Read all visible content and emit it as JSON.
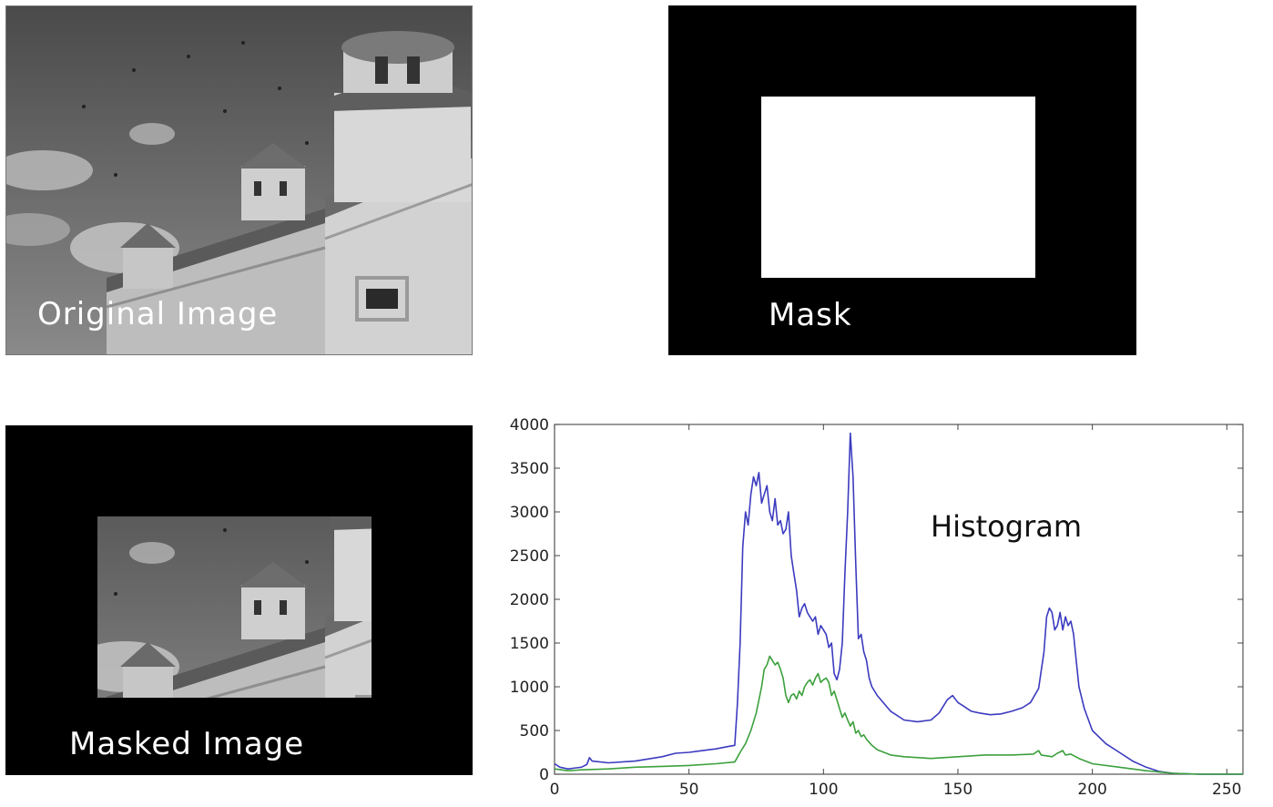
{
  "panels": {
    "original": {
      "caption": "Original Image"
    },
    "mask": {
      "caption": "Mask"
    },
    "masked": {
      "caption": "Masked Image"
    }
  },
  "chart_data": {
    "type": "line",
    "title": "Histogram",
    "xlabel": "",
    "ylabel": "",
    "xlim": [
      0,
      256
    ],
    "ylim": [
      0,
      4000
    ],
    "xticks": [
      0,
      50,
      100,
      150,
      200,
      250
    ],
    "yticks": [
      0,
      500,
      1000,
      1500,
      2000,
      2500,
      3000,
      3500,
      4000
    ],
    "grid": false,
    "legend": "none",
    "series": [
      {
        "color": "#3b3bbf",
        "points": [
          [
            0,
            120
          ],
          [
            2,
            80
          ],
          [
            5,
            60
          ],
          [
            10,
            80
          ],
          [
            12,
            110
          ],
          [
            13,
            190
          ],
          [
            14,
            150
          ],
          [
            20,
            130
          ],
          [
            30,
            150
          ],
          [
            40,
            200
          ],
          [
            45,
            240
          ],
          [
            50,
            250
          ],
          [
            55,
            270
          ],
          [
            60,
            290
          ],
          [
            65,
            320
          ],
          [
            67,
            330
          ],
          [
            68,
            800
          ],
          [
            69,
            1500
          ],
          [
            70,
            2600
          ],
          [
            71,
            3000
          ],
          [
            72,
            2850
          ],
          [
            73,
            3200
          ],
          [
            74,
            3400
          ],
          [
            75,
            3300
          ],
          [
            76,
            3450
          ],
          [
            77,
            3100
          ],
          [
            78,
            3200
          ],
          [
            79,
            3300
          ],
          [
            80,
            3000
          ],
          [
            81,
            2900
          ],
          [
            82,
            3150
          ],
          [
            83,
            2850
          ],
          [
            84,
            2900
          ],
          [
            85,
            2750
          ],
          [
            86,
            2800
          ],
          [
            87,
            3000
          ],
          [
            88,
            2500
          ],
          [
            89,
            2300
          ],
          [
            90,
            2100
          ],
          [
            91,
            1800
          ],
          [
            92,
            1900
          ],
          [
            93,
            1950
          ],
          [
            94,
            1850
          ],
          [
            95,
            1800
          ],
          [
            96,
            1750
          ],
          [
            97,
            1800
          ],
          [
            98,
            1600
          ],
          [
            99,
            1700
          ],
          [
            100,
            1650
          ],
          [
            101,
            1600
          ],
          [
            102,
            1450
          ],
          [
            103,
            1500
          ],
          [
            104,
            1150
          ],
          [
            105,
            1080
          ],
          [
            106,
            1200
          ],
          [
            107,
            1500
          ],
          [
            108,
            2300
          ],
          [
            109,
            3000
          ],
          [
            110,
            3900
          ],
          [
            111,
            3400
          ],
          [
            112,
            2400
          ],
          [
            113,
            1550
          ],
          [
            114,
            1600
          ],
          [
            115,
            1400
          ],
          [
            116,
            1300
          ],
          [
            117,
            1100
          ],
          [
            118,
            1000
          ],
          [
            120,
            900
          ],
          [
            125,
            720
          ],
          [
            130,
            620
          ],
          [
            135,
            600
          ],
          [
            140,
            620
          ],
          [
            143,
            700
          ],
          [
            146,
            850
          ],
          [
            148,
            900
          ],
          [
            150,
            820
          ],
          [
            152,
            780
          ],
          [
            155,
            720
          ],
          [
            158,
            700
          ],
          [
            162,
            680
          ],
          [
            166,
            690
          ],
          [
            170,
            720
          ],
          [
            174,
            760
          ],
          [
            177,
            820
          ],
          [
            180,
            980
          ],
          [
            182,
            1400
          ],
          [
            183,
            1800
          ],
          [
            184,
            1900
          ],
          [
            185,
            1850
          ],
          [
            186,
            1650
          ],
          [
            187,
            1700
          ],
          [
            188,
            1850
          ],
          [
            189,
            1650
          ],
          [
            190,
            1800
          ],
          [
            191,
            1700
          ],
          [
            192,
            1750
          ],
          [
            193,
            1600
          ],
          [
            194,
            1300
          ],
          [
            195,
            1000
          ],
          [
            197,
            750
          ],
          [
            200,
            500
          ],
          [
            205,
            350
          ],
          [
            210,
            250
          ],
          [
            215,
            150
          ],
          [
            220,
            80
          ],
          [
            225,
            30
          ],
          [
            230,
            10
          ],
          [
            240,
            0
          ],
          [
            256,
            0
          ]
        ]
      },
      {
        "color": "#3ca03c",
        "points": [
          [
            0,
            60
          ],
          [
            5,
            40
          ],
          [
            10,
            50
          ],
          [
            20,
            60
          ],
          [
            30,
            80
          ],
          [
            40,
            90
          ],
          [
            50,
            100
          ],
          [
            60,
            120
          ],
          [
            67,
            140
          ],
          [
            69,
            250
          ],
          [
            71,
            350
          ],
          [
            73,
            500
          ],
          [
            75,
            700
          ],
          [
            77,
            1000
          ],
          [
            78,
            1200
          ],
          [
            79,
            1250
          ],
          [
            80,
            1350
          ],
          [
            81,
            1300
          ],
          [
            82,
            1250
          ],
          [
            83,
            1280
          ],
          [
            84,
            1200
          ],
          [
            85,
            1100
          ],
          [
            86,
            900
          ],
          [
            87,
            820
          ],
          [
            88,
            900
          ],
          [
            89,
            920
          ],
          [
            90,
            860
          ],
          [
            91,
            950
          ],
          [
            92,
            900
          ],
          [
            93,
            1000
          ],
          [
            94,
            1050
          ],
          [
            95,
            1080
          ],
          [
            96,
            1020
          ],
          [
            97,
            1100
          ],
          [
            98,
            1150
          ],
          [
            99,
            1050
          ],
          [
            100,
            1080
          ],
          [
            101,
            1100
          ],
          [
            102,
            1050
          ],
          [
            103,
            900
          ],
          [
            104,
            950
          ],
          [
            105,
            850
          ],
          [
            106,
            750
          ],
          [
            107,
            650
          ],
          [
            108,
            700
          ],
          [
            109,
            620
          ],
          [
            110,
            550
          ],
          [
            111,
            600
          ],
          [
            112,
            470
          ],
          [
            113,
            500
          ],
          [
            114,
            430
          ],
          [
            115,
            450
          ],
          [
            116,
            400
          ],
          [
            118,
            330
          ],
          [
            120,
            280
          ],
          [
            125,
            220
          ],
          [
            130,
            200
          ],
          [
            140,
            180
          ],
          [
            150,
            200
          ],
          [
            160,
            220
          ],
          [
            170,
            220
          ],
          [
            178,
            230
          ],
          [
            180,
            270
          ],
          [
            181,
            220
          ],
          [
            185,
            200
          ],
          [
            187,
            240
          ],
          [
            189,
            270
          ],
          [
            190,
            220
          ],
          [
            192,
            230
          ],
          [
            195,
            180
          ],
          [
            200,
            120
          ],
          [
            210,
            80
          ],
          [
            220,
            40
          ],
          [
            230,
            10
          ],
          [
            240,
            0
          ],
          [
            256,
            0
          ]
        ]
      }
    ]
  }
}
